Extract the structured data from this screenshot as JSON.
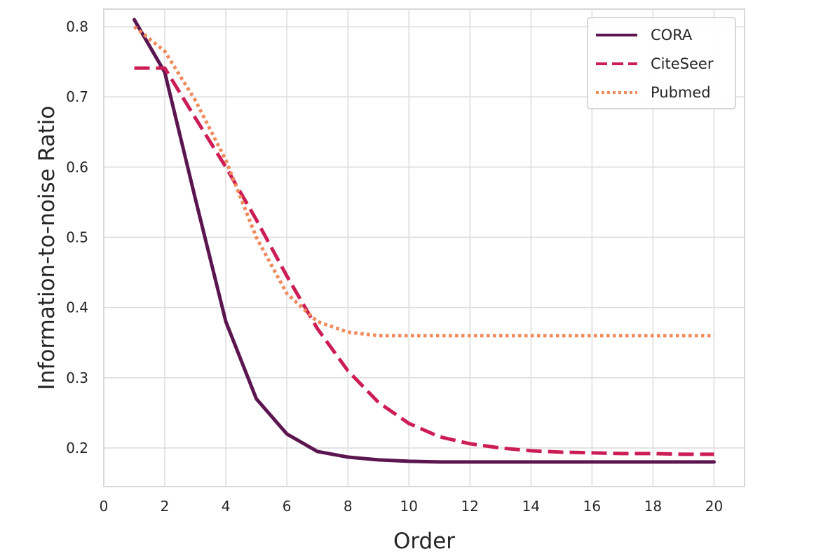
{
  "chart_data": {
    "type": "line",
    "xlabel": "Order",
    "ylabel": "Information-to-noise Ratio",
    "xlim": [
      0,
      21
    ],
    "ylim": [
      0.145,
      0.825
    ],
    "xticks": [
      0,
      2,
      4,
      6,
      8,
      10,
      12,
      14,
      16,
      18,
      20
    ],
    "yticks": [
      0.2,
      0.3,
      0.4,
      0.5,
      0.6,
      0.7,
      0.8
    ],
    "grid": true,
    "legend_position": "top-right",
    "x": [
      1,
      2,
      3,
      4,
      5,
      6,
      7,
      8,
      9,
      10,
      11,
      12,
      13,
      14,
      15,
      16,
      17,
      18,
      19,
      20
    ],
    "series": [
      {
        "name": "CORA",
        "color": "#5b1650",
        "dash": "solid",
        "values": [
          0.81,
          0.735,
          0.555,
          0.38,
          0.27,
          0.22,
          0.195,
          0.187,
          0.183,
          0.181,
          0.18,
          0.18,
          0.18,
          0.18,
          0.18,
          0.18,
          0.18,
          0.18,
          0.18,
          0.18
        ]
      },
      {
        "name": "CiteSeer",
        "color": "#cc1d55",
        "dash": "dashed",
        "values": [
          0.741,
          0.741,
          0.67,
          0.6,
          0.525,
          0.445,
          0.37,
          0.31,
          0.265,
          0.235,
          0.216,
          0.206,
          0.2,
          0.196,
          0.194,
          0.193,
          0.192,
          0.192,
          0.191,
          0.191
        ]
      },
      {
        "name": "Pubmed",
        "color": "#f08a5c",
        "dash": "dotted",
        "values": [
          0.8,
          0.765,
          0.695,
          0.61,
          0.5,
          0.42,
          0.38,
          0.365,
          0.36,
          0.36,
          0.36,
          0.36,
          0.36,
          0.36,
          0.36,
          0.36,
          0.36,
          0.36,
          0.36,
          0.36
        ]
      }
    ]
  }
}
